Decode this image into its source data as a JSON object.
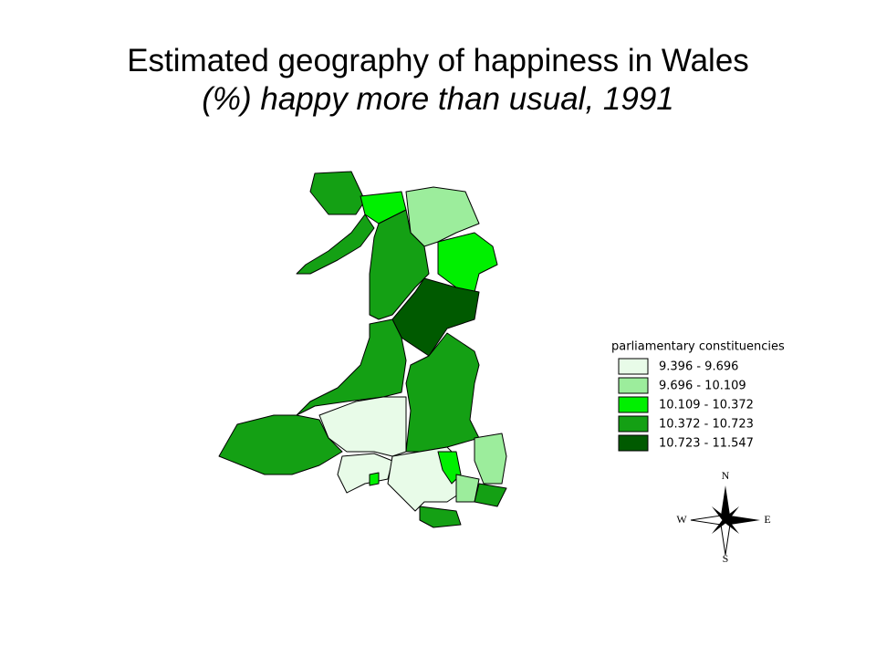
{
  "title": {
    "line1": "Estimated geography of happiness in Wales",
    "line2": "(%) happy more than usual, 1991"
  },
  "legend": {
    "title": "parliamentary constituencies",
    "entries": [
      {
        "label": "9.396 - 9.696",
        "color": "#e8fbe8"
      },
      {
        "label": "9.696 - 10.109",
        "color": "#9ced9c"
      },
      {
        "label": "10.109 - 10.372",
        "color": "#00f000"
      },
      {
        "label": "10.372 - 10.723",
        "color": "#14a014"
      },
      {
        "label": "10.723 - 11.547",
        "color": "#005a00"
      }
    ]
  },
  "compass": {
    "north": "N",
    "south": "S",
    "east": "E",
    "west": "W"
  }
}
